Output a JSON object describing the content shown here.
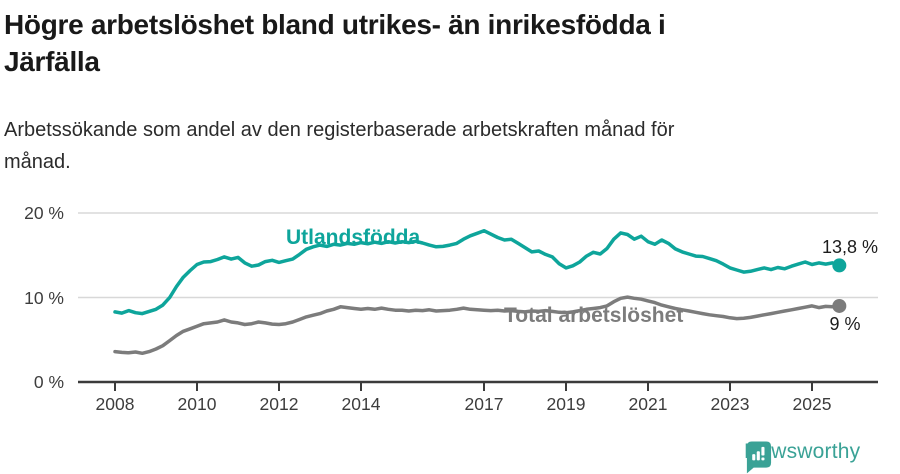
{
  "header": {
    "title_lines": [
      "Högre arbetslöshet bland utrikes- än inrikesfödda i",
      "Järfälla"
    ],
    "subtitle_lines": [
      "Arbetssökande som andel av den registerbaserade arbetskraften månad för",
      "månad."
    ]
  },
  "chart_data": {
    "type": "line",
    "title": "Högre arbetslöshet bland utrikes- än inrikesfödda i Järfälla",
    "subtitle": "Arbetssökande som andel av den registerbaserade arbetskraften månad för månad.",
    "x_start": 2008.0,
    "points_per_year": 6,
    "x_end": 2025.67,
    "ylim": [
      0,
      21
    ],
    "grid": "horizontal",
    "x_ticks": [
      {
        "year": 2008,
        "label": "2008"
      },
      {
        "year": 2010,
        "label": "2010"
      },
      {
        "year": 2012,
        "label": "2012"
      },
      {
        "year": 2014,
        "label": "2014"
      },
      {
        "year": 2017,
        "label": "2017"
      },
      {
        "year": 2019,
        "label": "2019"
      },
      {
        "year": 2021,
        "label": "2021"
      },
      {
        "year": 2023,
        "label": "2023"
      },
      {
        "year": 2025,
        "label": "2025"
      }
    ],
    "y_ticks": [
      {
        "value": 20,
        "label": "20 %"
      },
      {
        "value": 10,
        "label": "10 %"
      },
      {
        "value": 0,
        "label": "0 %"
      }
    ],
    "series": [
      {
        "name": "Utlandsfödda",
        "color": "#0ea59b",
        "end_label": "13,8 %",
        "end_value": 13.8,
        "values": [
          8.3,
          8.15,
          8.45,
          8.2,
          8.1,
          8.35,
          8.6,
          9.1,
          10.0,
          11.3,
          12.4,
          13.2,
          13.9,
          14.2,
          14.25,
          14.5,
          14.8,
          14.55,
          14.75,
          14.1,
          13.7,
          13.85,
          14.25,
          14.4,
          14.15,
          14.35,
          14.55,
          15.1,
          15.7,
          16.0,
          16.2,
          16.05,
          16.3,
          16.2,
          16.4,
          16.3,
          16.5,
          16.35,
          16.55,
          16.4,
          16.6,
          16.45,
          16.6,
          16.5,
          16.65,
          16.45,
          16.2,
          16.0,
          16.05,
          16.2,
          16.4,
          16.9,
          17.3,
          17.6,
          17.9,
          17.5,
          17.1,
          16.8,
          16.9,
          16.4,
          15.9,
          15.4,
          15.5,
          15.1,
          14.8,
          14.0,
          13.5,
          13.75,
          14.2,
          14.9,
          15.35,
          15.15,
          15.8,
          16.9,
          17.65,
          17.45,
          16.9,
          17.25,
          16.6,
          16.3,
          16.8,
          16.4,
          15.75,
          15.4,
          15.15,
          14.9,
          14.85,
          14.6,
          14.35,
          13.95,
          13.5,
          13.25,
          13.0,
          13.1,
          13.3,
          13.5,
          13.3,
          13.55,
          13.4,
          13.7,
          13.95,
          14.2,
          13.9,
          14.1,
          13.95,
          14.1,
          13.8
        ]
      },
      {
        "name": "Total arbetslöshet",
        "color": "#7c7c7c",
        "end_label": "9 %",
        "end_value": 9,
        "values": [
          3.6,
          3.5,
          3.45,
          3.55,
          3.4,
          3.6,
          3.9,
          4.3,
          4.9,
          5.5,
          6.0,
          6.3,
          6.6,
          6.9,
          7.0,
          7.1,
          7.35,
          7.1,
          7.0,
          6.8,
          6.9,
          7.1,
          7.0,
          6.85,
          6.8,
          6.9,
          7.1,
          7.4,
          7.7,
          7.9,
          8.1,
          8.4,
          8.6,
          8.9,
          8.8,
          8.7,
          8.6,
          8.7,
          8.6,
          8.75,
          8.6,
          8.5,
          8.5,
          8.4,
          8.5,
          8.45,
          8.55,
          8.4,
          8.45,
          8.5,
          8.6,
          8.75,
          8.6,
          8.55,
          8.5,
          8.45,
          8.5,
          8.4,
          8.45,
          8.35,
          8.3,
          8.4,
          8.35,
          8.45,
          8.35,
          8.25,
          8.2,
          8.3,
          8.45,
          8.6,
          8.7,
          8.8,
          9.0,
          9.5,
          9.9,
          10.05,
          9.9,
          9.8,
          9.6,
          9.4,
          9.1,
          8.9,
          8.7,
          8.55,
          8.4,
          8.25,
          8.1,
          7.95,
          7.85,
          7.75,
          7.6,
          7.5,
          7.55,
          7.65,
          7.8,
          7.95,
          8.1,
          8.25,
          8.4,
          8.55,
          8.7,
          8.85,
          9.0,
          8.8,
          8.95,
          8.9,
          9.0
        ]
      }
    ]
  },
  "colors": {
    "accent_teal": "#0ea59b",
    "series_gray": "#7c7c7c",
    "gridline": "#d8d8d8",
    "axis": "#3b3b3b",
    "logo_teal": "#3aa296"
  },
  "footer": {
    "brand": "Newsworthy"
  }
}
